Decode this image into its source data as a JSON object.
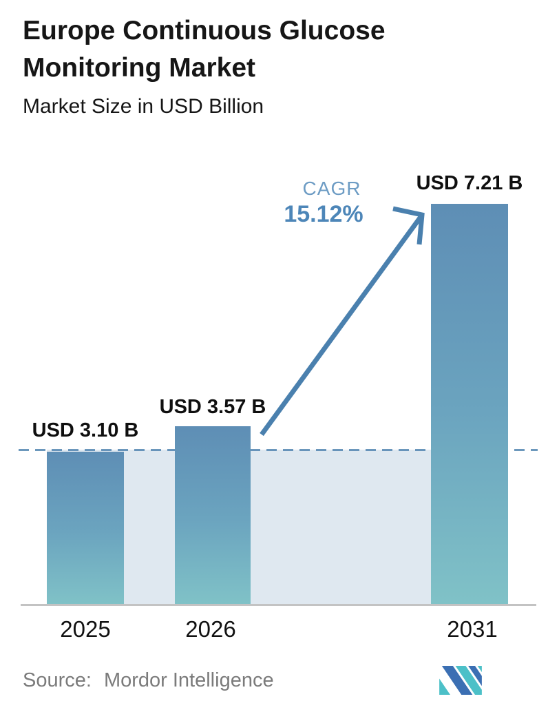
{
  "header": {
    "title": "Europe Continuous Glucose Monitoring Market",
    "subtitle": "Market Size in USD Billion"
  },
  "chart_data": {
    "type": "bar",
    "title": "Europe Continuous Glucose Monitoring Market",
    "subtitle": "Market Size in USD Billion",
    "unit": "USD Billion",
    "categories": [
      "2025",
      "2026",
      "2031"
    ],
    "values": [
      3.1,
      3.57,
      7.21
    ],
    "bars": [
      {
        "year": "2025",
        "value": 3.1,
        "label": "USD 3.10 B"
      },
      {
        "year": "2026",
        "value": 3.57,
        "label": "USD 3.57 B"
      },
      {
        "year": "2031",
        "value": 7.21,
        "label": "USD 7.21 B"
      }
    ],
    "cagr": {
      "label": "CAGR",
      "value": "15.12%"
    },
    "reference_line": {
      "at_value": 3.1,
      "style": "dashed"
    },
    "ylim": [
      0,
      7.25
    ],
    "grid": false,
    "legend": "none"
  },
  "footer": {
    "source_label": "Source:",
    "source_name": "Mordor Intelligence"
  },
  "colors": {
    "bar_top": "#5e8eb5",
    "bar_bottom": "#80c2c7",
    "band": "#dfe8f0",
    "dashed_line": "#4c80ad",
    "arrow": "#4a80ae",
    "cagr_label": "#6d9cc4",
    "cagr_value": "#4d86b8",
    "axis_line": "#c3c3c3",
    "text": "#161616",
    "source_text": "#7b7b7b",
    "logo_blue": "#3b6fb3",
    "logo_teal": "#4cc0c8"
  }
}
